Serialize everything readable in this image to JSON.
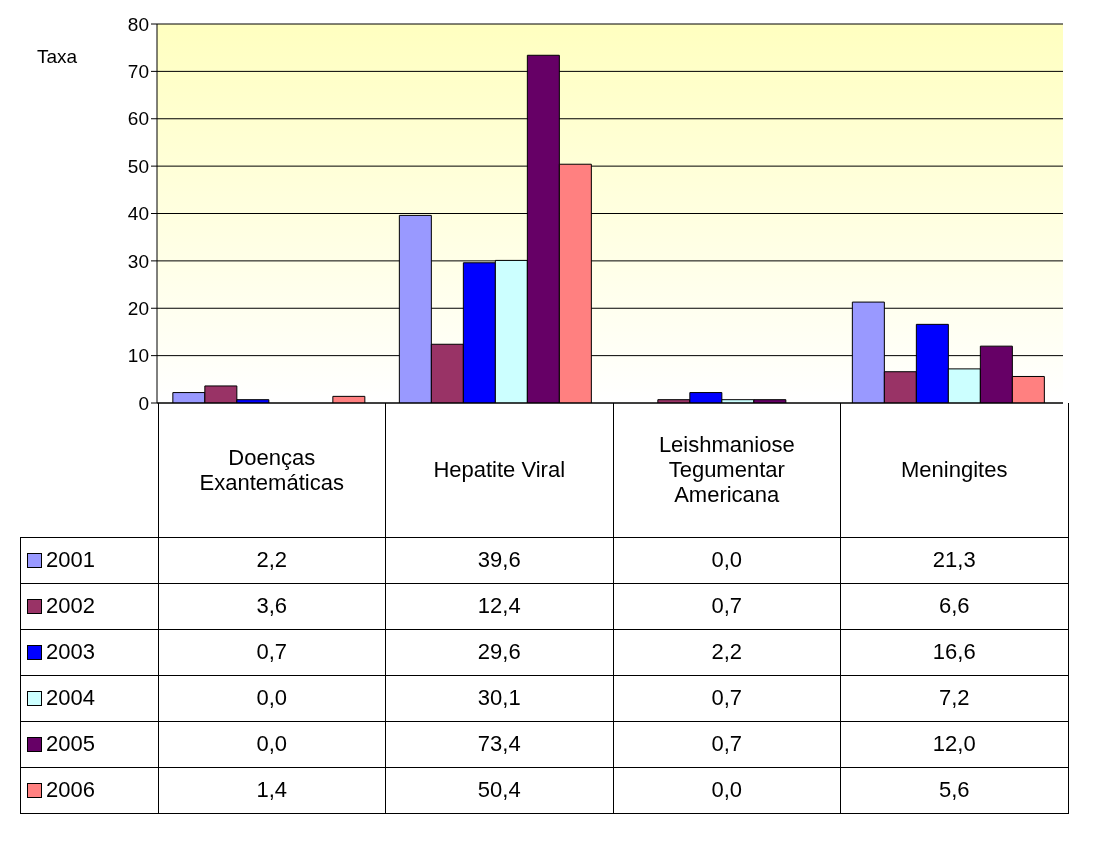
{
  "chart_data": {
    "type": "bar",
    "ylabel": "Taxa",
    "categories": [
      "Doenças Exantemáticas",
      "Hepatite Viral",
      "Leishmaniose Tegumentar Americana",
      "Meningites"
    ],
    "series": [
      {
        "name": "2001",
        "color": "#9999ff",
        "values": [
          2.2,
          39.6,
          0.0,
          21.3
        ],
        "value_labels": [
          "2,2",
          "39,6",
          "0,0",
          "21,3"
        ]
      },
      {
        "name": "2002",
        "color": "#993366",
        "values": [
          3.6,
          12.4,
          0.7,
          6.6
        ],
        "value_labels": [
          "3,6",
          "12,4",
          "0,7",
          "6,6"
        ]
      },
      {
        "name": "2003",
        "color": "#0000ff",
        "values": [
          0.7,
          29.6,
          2.2,
          16.6
        ],
        "value_labels": [
          "0,7",
          "29,6",
          "2,2",
          "16,6"
        ]
      },
      {
        "name": "2004",
        "color": "#ccffff",
        "values": [
          0.0,
          30.1,
          0.7,
          7.2
        ],
        "value_labels": [
          "0,0",
          "30,1",
          "0,7",
          "7,2"
        ]
      },
      {
        "name": "2005",
        "color": "#660066",
        "values": [
          0.0,
          73.4,
          0.7,
          12.0
        ],
        "value_labels": [
          "0,0",
          "73,4",
          "0,7",
          "12,0"
        ]
      },
      {
        "name": "2006",
        "color": "#ff8080",
        "values": [
          1.4,
          50.4,
          0.0,
          5.6
        ],
        "value_labels": [
          "1,4",
          "50,4",
          "0,0",
          "5,6"
        ]
      }
    ],
    "ylim": [
      0,
      80
    ],
    "yticks": [
      0,
      10,
      20,
      30,
      40,
      50,
      60,
      70,
      80
    ],
    "grid": "y",
    "legend": "bottom"
  }
}
